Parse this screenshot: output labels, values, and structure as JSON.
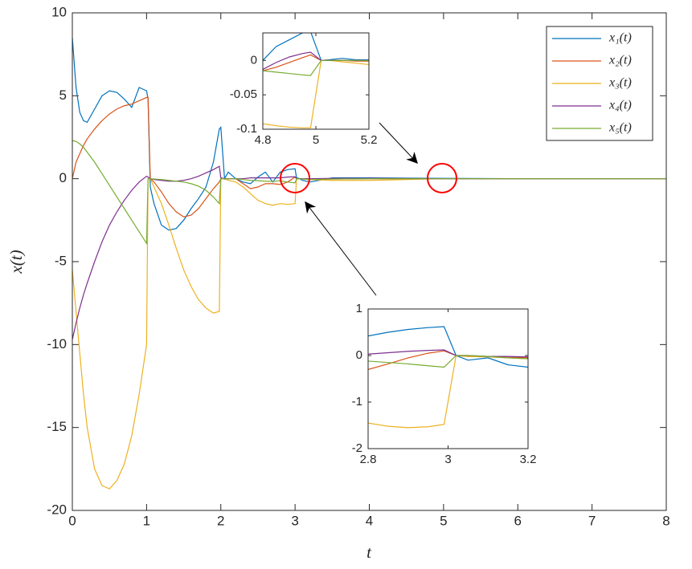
{
  "chart_data": [
    {
      "type": "line",
      "xlabel": "t",
      "ylabel": "x(t)",
      "legend": "upper right",
      "xlim": [
        0,
        8
      ],
      "ylim": [
        -20,
        10
      ],
      "xticks": [
        0,
        1,
        2,
        3,
        4,
        5,
        6,
        7,
        8
      ],
      "yticks": [
        -20,
        -15,
        -10,
        -5,
        0,
        5,
        10
      ],
      "x": [
        0,
        0.05,
        0.1,
        0.15,
        0.2,
        0.3,
        0.4,
        0.5,
        0.6,
        0.7,
        0.8,
        0.9,
        1.0,
        1.02,
        1.05,
        1.1,
        1.2,
        1.3,
        1.4,
        1.5,
        1.6,
        1.7,
        1.8,
        1.9,
        1.98,
        2.0,
        2.05,
        2.1,
        2.2,
        2.3,
        2.4,
        2.5,
        2.6,
        2.7,
        2.8,
        2.9,
        3.0,
        3.02,
        3.05,
        3.1,
        3.2,
        3.5,
        4.0,
        5.0,
        6.0,
        7.0,
        8.0
      ],
      "series": [
        {
          "name": "x₁(t)",
          "color": "#0072bd",
          "values": [
            8.5,
            5.5,
            4.0,
            3.5,
            3.4,
            4.2,
            5.0,
            5.3,
            5.2,
            4.8,
            4.3,
            5.5,
            5.3,
            4.8,
            -0.5,
            -1.5,
            -2.8,
            -3.1,
            -3.0,
            -2.5,
            -1.8,
            -1.2,
            -0.5,
            1.0,
            3.0,
            3.1,
            0.0,
            0.4,
            0.0,
            -0.2,
            -0.3,
            0.1,
            0.4,
            -0.2,
            0.4,
            0.55,
            0.6,
            0.05,
            0.02,
            -0.1,
            -0.2,
            0.05,
            0.05,
            0.02,
            0,
            0,
            0
          ]
        },
        {
          "name": "x₂(t)",
          "color": "#d95319",
          "values": [
            0,
            1.0,
            1.5,
            2.0,
            2.4,
            3.0,
            3.5,
            3.9,
            4.2,
            4.4,
            4.5,
            4.7,
            4.9,
            4.9,
            0,
            -0.2,
            -0.8,
            -1.5,
            -2.0,
            -2.3,
            -2.2,
            -1.8,
            -1.2,
            -0.6,
            -0.2,
            0,
            0,
            0,
            0,
            -0.3,
            -0.6,
            -0.5,
            -0.3,
            -0.3,
            -0.35,
            -0.2,
            0.1,
            0,
            0,
            -0.02,
            -0.05,
            -0.02,
            0,
            0,
            0,
            0,
            0
          ]
        },
        {
          "name": "x₃(t)",
          "color": "#edb120",
          "values": [
            -5.5,
            -8,
            -10.5,
            -13,
            -15,
            -17.5,
            -18.5,
            -18.7,
            -18.2,
            -17.2,
            -15.5,
            -13,
            -10,
            0,
            0,
            -0.5,
            -1.5,
            -2.8,
            -4.2,
            -5.5,
            -6.5,
            -7.3,
            -7.8,
            -8.1,
            -8.0,
            0,
            0,
            -0.1,
            -0.2,
            -0.5,
            -0.9,
            -1.3,
            -1.5,
            -1.6,
            -1.5,
            -1.55,
            -1.5,
            0,
            0,
            -0.02,
            -0.05,
            -0.1,
            -0.1,
            0,
            0,
            0,
            0
          ]
        },
        {
          "name": "x₄(t)",
          "color": "#7e2f8e",
          "values": [
            -9.7,
            -8.7,
            -7.8,
            -7,
            -6.3,
            -5,
            -3.8,
            -2.8,
            -2,
            -1.3,
            -0.7,
            -0.2,
            0.15,
            0.1,
            0,
            -0.05,
            -0.1,
            -0.15,
            -0.15,
            -0.1,
            0,
            0.15,
            0.35,
            0.55,
            0.75,
            0.05,
            0,
            0,
            0,
            0,
            0.05,
            0.05,
            0.05,
            0.05,
            0.05,
            0.1,
            0.12,
            0,
            0,
            0,
            0,
            0.02,
            0.02,
            0,
            0,
            0,
            0
          ]
        },
        {
          "name": "x₅(t)",
          "color": "#77ac30",
          "values": [
            2.3,
            2.25,
            2.1,
            1.9,
            1.6,
            1.0,
            0.3,
            -0.4,
            -1.1,
            -1.8,
            -2.5,
            -3.2,
            -3.9,
            0,
            0,
            -0.02,
            -0.05,
            -0.1,
            -0.15,
            -0.2,
            -0.3,
            -0.45,
            -0.7,
            -1.1,
            -1.5,
            0,
            0,
            0,
            0,
            -0.05,
            -0.1,
            -0.12,
            -0.15,
            -0.17,
            -0.12,
            -0.2,
            -0.25,
            0,
            0,
            -0.02,
            -0.05,
            -0.02,
            0,
            0,
            0,
            0,
            0
          ]
        }
      ]
    },
    {
      "type": "line",
      "xlim": [
        4.8,
        5.2
      ],
      "ylim": [
        -0.1,
        0.04
      ],
      "xticks": [
        4.8,
        5,
        5.2
      ],
      "yticks": [
        -0.1,
        -0.05,
        0
      ],
      "x": [
        4.8,
        4.85,
        4.9,
        4.95,
        4.98,
        5.02,
        5.05,
        5.1,
        5.15,
        5.2
      ],
      "series": [
        {
          "color": "#0072bd",
          "values": [
            0.0,
            0.02,
            0.03,
            0.04,
            0.042,
            0.0,
            0.001,
            0.003,
            0.001,
            0.001
          ]
        },
        {
          "color": "#d95319",
          "values": [
            -0.015,
            -0.01,
            -0.003,
            0.004,
            0.008,
            0.0,
            0.0,
            0.0,
            -0.001,
            -0.001
          ]
        },
        {
          "color": "#edb120",
          "values": [
            -0.092,
            -0.095,
            -0.097,
            -0.098,
            -0.098,
            0.0,
            0.0,
            -0.002,
            -0.004,
            -0.006
          ]
        },
        {
          "color": "#7e2f8e",
          "values": [
            -0.013,
            -0.003,
            0.005,
            0.01,
            0.012,
            0.0,
            0.0,
            0.0,
            0.0,
            0.0
          ]
        },
        {
          "color": "#77ac30",
          "values": [
            -0.015,
            -0.017,
            -0.019,
            -0.021,
            -0.022,
            0.0,
            0.0,
            0.0,
            0.0,
            0.0
          ]
        }
      ]
    },
    {
      "type": "line",
      "xlim": [
        2.8,
        3.2
      ],
      "ylim": [
        -2,
        1
      ],
      "xticks": [
        2.8,
        3,
        3.2
      ],
      "yticks": [
        -2,
        -1,
        0,
        1
      ],
      "x": [
        2.8,
        2.85,
        2.9,
        2.95,
        2.99,
        3.02,
        3.05,
        3.1,
        3.15,
        3.2
      ],
      "series": [
        {
          "color": "#0072bd",
          "values": [
            0.42,
            0.5,
            0.56,
            0.6,
            0.62,
            0.0,
            -0.1,
            -0.05,
            -0.2,
            -0.25
          ]
        },
        {
          "color": "#d95319",
          "values": [
            -0.3,
            -0.18,
            -0.05,
            0.05,
            0.1,
            0.0,
            -0.02,
            -0.02,
            -0.04,
            -0.05
          ]
        },
        {
          "color": "#edb120",
          "values": [
            -1.45,
            -1.52,
            -1.55,
            -1.53,
            -1.48,
            0.0,
            -0.02,
            -0.03,
            -0.05,
            -0.07
          ]
        },
        {
          "color": "#7e2f8e",
          "values": [
            0.03,
            0.06,
            0.09,
            0.11,
            0.12,
            0.0,
            0.0,
            -0.02,
            -0.02,
            -0.03
          ]
        },
        {
          "color": "#77ac30",
          "values": [
            -0.12,
            -0.15,
            -0.18,
            -0.22,
            -0.25,
            0.0,
            0.0,
            -0.02,
            -0.05,
            -0.07
          ]
        }
      ]
    }
  ]
}
